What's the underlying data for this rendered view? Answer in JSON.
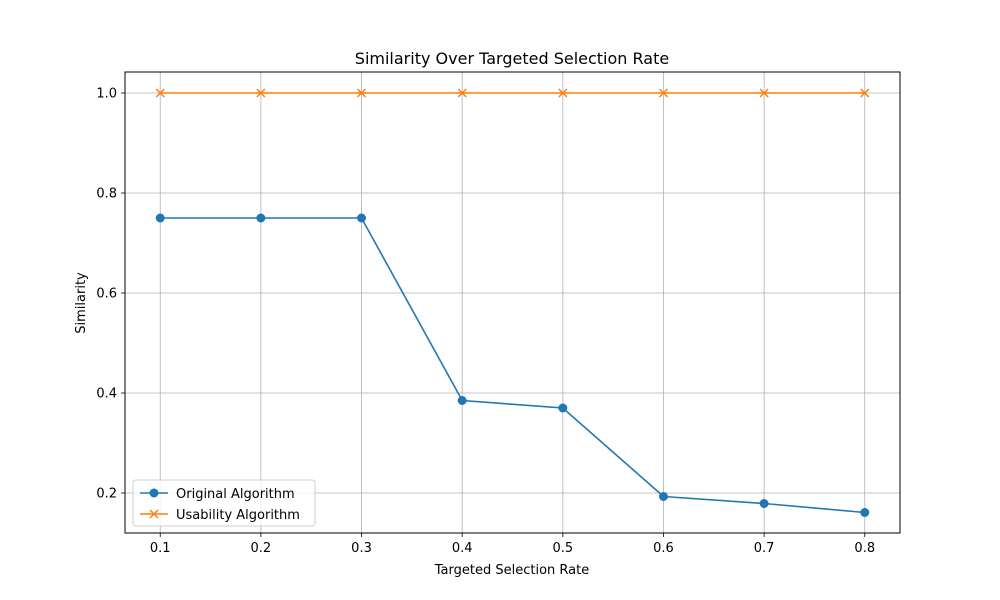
{
  "chart_data": {
    "type": "line",
    "title": "Similarity Over Targeted Selection Rate",
    "xlabel": "Targeted Selection Rate",
    "ylabel": "Similarity",
    "x": [
      0.1,
      0.2,
      0.3,
      0.4,
      0.5,
      0.6,
      0.7,
      0.8
    ],
    "x_ticks": [
      "0.1",
      "0.2",
      "0.3",
      "0.4",
      "0.5",
      "0.6",
      "0.7",
      "0.8"
    ],
    "y_ticks": [
      "0.2",
      "0.4",
      "0.6",
      "0.8",
      "1.0"
    ],
    "y_tick_values": [
      0.2,
      0.4,
      0.6,
      0.8,
      1.0
    ],
    "xlim": [
      0.065,
      0.835
    ],
    "ylim": [
      0.12,
      1.042
    ],
    "grid": true,
    "legend_position": "lower-left",
    "series": [
      {
        "name": "Original Algorithm",
        "marker": "circle",
        "color": "#1f77b4",
        "values": [
          0.75,
          0.75,
          0.75,
          0.385,
          0.37,
          0.193,
          0.179,
          0.161
        ]
      },
      {
        "name": "Usability Algorithm",
        "marker": "x",
        "color": "#ff7f0e",
        "values": [
          1.0,
          1.0,
          1.0,
          1.0,
          1.0,
          1.0,
          1.0,
          1.0
        ]
      }
    ]
  }
}
